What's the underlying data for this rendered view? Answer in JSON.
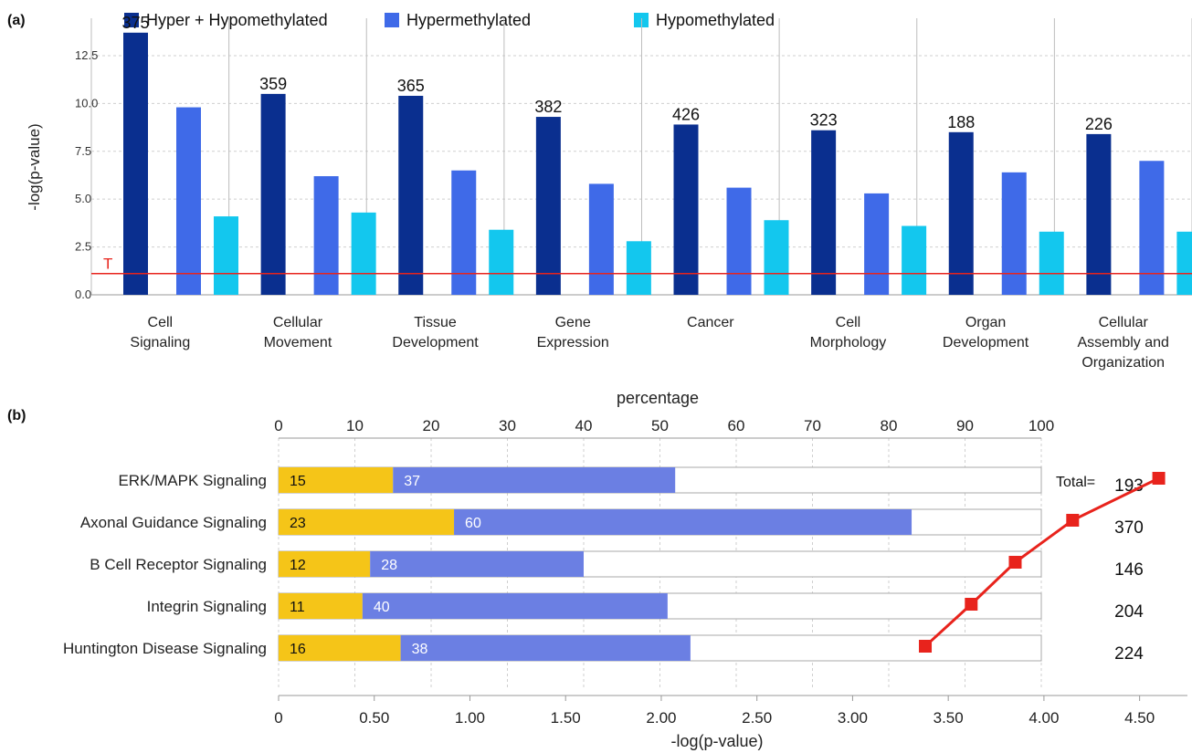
{
  "chart_data": [
    {
      "panel_label": "(a)",
      "type": "bar",
      "ylabel": "-log(p-value)",
      "ylim": [
        0,
        13.5
      ],
      "yticks": [
        "0.0",
        "2.5",
        "5.0",
        "7.5",
        "10.0",
        "12.5"
      ],
      "categories": [
        [
          "Cell",
          "Signaling"
        ],
        [
          "Cellular",
          "Movement"
        ],
        [
          "Tissue",
          "Development"
        ],
        [
          "Gene",
          "Expression"
        ],
        [
          "Cancer"
        ],
        [
          "Cell",
          "Morphology"
        ],
        [
          "Organ",
          "Development"
        ],
        [
          "Cellular",
          "Assembly and",
          "Organization"
        ]
      ],
      "series": [
        {
          "name": "Hyper + Hypomethylated",
          "color": "#0a2f8f",
          "values": [
            13.7,
            10.5,
            10.4,
            9.3,
            8.9,
            8.6,
            8.5,
            8.4
          ]
        },
        {
          "name": "Hypermethylated",
          "color": "#3f6ae8",
          "values": [
            9.8,
            6.2,
            6.5,
            5.8,
            5.6,
            5.3,
            6.4,
            7.0
          ]
        },
        {
          "name": "Hypomethylated",
          "color": "#13c7ee",
          "values": [
            4.1,
            4.3,
            3.4,
            2.8,
            3.9,
            3.6,
            3.3,
            3.3
          ]
        }
      ],
      "bar_labels": [
        "375",
        "359",
        "365",
        "382",
        "426",
        "323",
        "188",
        "226"
      ],
      "threshold": {
        "label": "T",
        "value": 1.3,
        "color": "#e8231c"
      },
      "legend": "top",
      "grid": true
    },
    {
      "panel_label": "(b)",
      "type": "bar",
      "orientation": "horizontal",
      "top_axis_label": "percentage",
      "top_ticks": [
        "0",
        "10",
        "20",
        "30",
        "40",
        "50",
        "60",
        "70",
        "80",
        "90",
        "100"
      ],
      "xlabel": "-log(p-value)",
      "bottom_ticks": [
        "0",
        "0.50",
        "1.00",
        "1.50",
        "2.00",
        "2.50",
        "3.00",
        "3.50",
        "4.00",
        "4.50"
      ],
      "categories": [
        "ERK/MAPK Signaling",
        "Axonal Guidance Signaling",
        "B Cell Receptor Signaling",
        "Integrin Signaling",
        "Huntington Disease Signaling"
      ],
      "series": [
        {
          "color": "#f5c518",
          "values": [
            15,
            23,
            12,
            11,
            16
          ]
        },
        {
          "color": "#6b7fe3",
          "values": [
            37,
            60,
            28,
            40,
            38
          ]
        }
      ],
      "totals_label": "Total=",
      "totals": [
        "193",
        "370",
        "146",
        "204",
        "224"
      ],
      "line": {
        "color": "#e8231c",
        "values": [
          4.6,
          4.15,
          3.85,
          3.62,
          3.38
        ]
      },
      "grid": true
    }
  ]
}
